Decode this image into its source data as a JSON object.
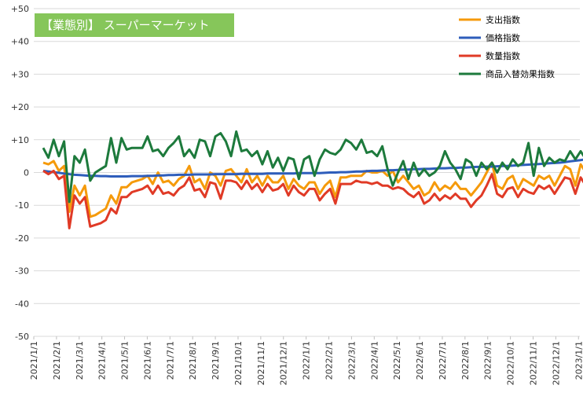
{
  "chart_data": {
    "type": "line",
    "title": "【業態別】 スーパーマーケット",
    "ylim": [
      -50,
      50
    ],
    "y_ticks": [
      "+50",
      "+40",
      "+30",
      "+20",
      "+10",
      "0",
      "-10",
      "-20",
      "-30",
      "-40",
      "-50"
    ],
    "x_ticks": [
      "2021/1/1",
      "2021/2/1",
      "2021/3/1",
      "2021/4/1",
      "2021/5/1",
      "2021/6/1",
      "2021/7/1",
      "2021/8/1",
      "2021/9/1",
      "2021/10/1",
      "2021/11/1",
      "2021/12/1",
      "2022/1/1",
      "2022/2/1",
      "2022/3/1",
      "2022/4/1",
      "2022/5/1",
      "2022/6/1",
      "2022/7/1",
      "2022/8/1",
      "2022/9/1",
      "2022/10/1",
      "2022/11/1",
      "2022/12/1",
      "2023/1/1"
    ],
    "weeks_per_month": 4.35,
    "grid": "horizontal",
    "legend_position": "top-right",
    "series": [
      {
        "name": "支出指数",
        "color": "#f59a0b",
        "values": [
          3,
          2.5,
          3.5,
          0.5,
          2,
          -12,
          -4,
          -7,
          -4,
          -13.5,
          -13,
          -12,
          -11,
          -7,
          -9.5,
          -4.5,
          -4.5,
          -3,
          -2.5,
          -2,
          -1,
          -3.5,
          0,
          -3,
          -2.5,
          -4,
          -2,
          -1,
          2,
          -3,
          -2,
          -5,
          0,
          -1,
          -4,
          0.5,
          1,
          -1,
          -3,
          1,
          -3,
          -1,
          -4,
          -1,
          -3,
          -3,
          -1,
          -5,
          -2,
          -4,
          -5,
          -3,
          -3,
          -6.5,
          -4,
          -2.5,
          -7.5,
          -1.5,
          -1.5,
          -1,
          -1,
          -1,
          0.5,
          0,
          0,
          0.5,
          -1,
          0.5,
          -3,
          -1,
          -3,
          -5,
          -4,
          -7,
          -6,
          -3,
          -5.5,
          -4,
          -5,
          -3,
          -5,
          -5,
          -7,
          -5,
          -3,
          0,
          3,
          -4,
          -5,
          -2,
          -1,
          -5,
          -2,
          -3,
          -4,
          -1,
          -2,
          -1,
          -4,
          -1,
          2,
          1,
          -4,
          2.5,
          0,
          1,
          0,
          2,
          1,
          2,
          1,
          1,
          4,
          3.5,
          4,
          3,
          8,
          -2,
          -0.5
        ]
      },
      {
        "name": "価格指数",
        "color": "#2e5dbb",
        "values": [
          0.5,
          0.3,
          0.1,
          -0.1,
          -0.3,
          -0.5,
          -0.7,
          -0.8,
          -0.9,
          -1,
          -1,
          -1.1,
          -1.1,
          -1.2,
          -1.2,
          -1.2,
          -1.2,
          -1.1,
          -1.1,
          -1.1,
          -1,
          -1,
          -0.9,
          -0.9,
          -0.8,
          -0.8,
          -0.7,
          -0.7,
          -0.7,
          -0.6,
          -0.6,
          -0.6,
          -0.6,
          -0.5,
          -0.5,
          -0.5,
          -0.5,
          -0.5,
          -0.4,
          -0.4,
          -0.4,
          -0.4,
          -0.4,
          -0.3,
          -0.3,
          -0.3,
          -0.3,
          -0.3,
          -0.3,
          -0.2,
          -0.2,
          -0.2,
          -0.2,
          -0.2,
          -0.1,
          0,
          0,
          0.1,
          0.1,
          0.2,
          0.3,
          0.3,
          0.4,
          0.5,
          0.5,
          0.6,
          0.7,
          0.7,
          0.8,
          0.9,
          0.9,
          1,
          1,
          1.1,
          1.1,
          1.2,
          1.3,
          1.3,
          1.4,
          1.4,
          1.5,
          1.5,
          1.6,
          1.7,
          1.7,
          1.8,
          1.8,
          1.9,
          2,
          2,
          2.1,
          2.2,
          2.3,
          2.4,
          2.5,
          2.6,
          2.7,
          2.8,
          2.9,
          3,
          3.2,
          3.4,
          3.6,
          3.8,
          4,
          4.3,
          4.6,
          4.9,
          5.2,
          5.5,
          5.8,
          6,
          6.1,
          6.2,
          6.3,
          6.3,
          6.3,
          6.2,
          6.1,
          6,
          6
        ]
      },
      {
        "name": "数量指数",
        "color": "#e03a26",
        "values": [
          0.5,
          -0.5,
          0.5,
          -2,
          -1,
          -17,
          -7,
          -9.5,
          -7.5,
          -16.5,
          -16,
          -15.5,
          -14.5,
          -11,
          -12.5,
          -7.5,
          -7.5,
          -6,
          -5.5,
          -5,
          -4,
          -6.5,
          -4,
          -6.5,
          -6,
          -7,
          -5,
          -4,
          -1.5,
          -5.5,
          -5,
          -7.5,
          -3,
          -3.5,
          -8,
          -2.5,
          -2.5,
          -3,
          -5,
          -2.5,
          -5,
          -3.5,
          -6,
          -3.5,
          -5.5,
          -5,
          -3.5,
          -7,
          -4,
          -6,
          -7,
          -5,
          -5,
          -8.5,
          -6.5,
          -5,
          -9.5,
          -3.5,
          -3.5,
          -3.5,
          -2.5,
          -3,
          -3,
          -3.5,
          -3,
          -4,
          -4,
          -5,
          -4.5,
          -5,
          -6.5,
          -7.5,
          -6,
          -9.5,
          -8.5,
          -6.5,
          -8.5,
          -7,
          -8,
          -6.5,
          -8,
          -8,
          -10.5,
          -8.5,
          -7,
          -4,
          -0.5,
          -6.5,
          -7.5,
          -5,
          -4.5,
          -7.5,
          -5,
          -6,
          -6.5,
          -4,
          -5,
          -4,
          -6.5,
          -4,
          -1.5,
          -2,
          -6.5,
          -1.5,
          -4,
          -3,
          -4,
          -2,
          -3,
          -2,
          -3,
          -3,
          0,
          -0.5,
          -0.5,
          -1,
          3,
          -9,
          -7
        ]
      },
      {
        "name": "商品入替効果指数",
        "color": "#1d7a3c",
        "values": [
          7.5,
          4.5,
          10,
          5,
          9.5,
          -9,
          5,
          3,
          7,
          -2.5,
          0,
          1,
          2,
          10.5,
          3,
          10.5,
          7,
          7.5,
          7.5,
          7.5,
          11,
          6.5,
          7,
          5,
          7.5,
          9,
          11,
          5,
          7,
          4.5,
          10,
          9.5,
          5,
          11,
          12,
          9.5,
          5,
          12.5,
          6.5,
          7,
          5,
          6.5,
          2.5,
          6.5,
          1.5,
          4.5,
          0.5,
          4.5,
          4,
          -2,
          4,
          5,
          -1,
          4,
          7,
          6,
          5.5,
          7,
          10,
          9,
          7,
          10,
          6,
          6.5,
          5,
          8,
          1,
          -4,
          0,
          3.5,
          -2,
          3,
          -1,
          1,
          -1,
          0,
          2,
          6.5,
          3,
          1,
          -2,
          4,
          3,
          -1,
          3,
          1,
          3,
          0,
          3,
          1,
          4,
          2,
          3,
          9,
          -1,
          7.5,
          2,
          4.5,
          3,
          4,
          3.5,
          6.5,
          4,
          6.5,
          4,
          7,
          5,
          6.5,
          11.5,
          12,
          0.5,
          2,
          2,
          2
        ]
      }
    ]
  }
}
